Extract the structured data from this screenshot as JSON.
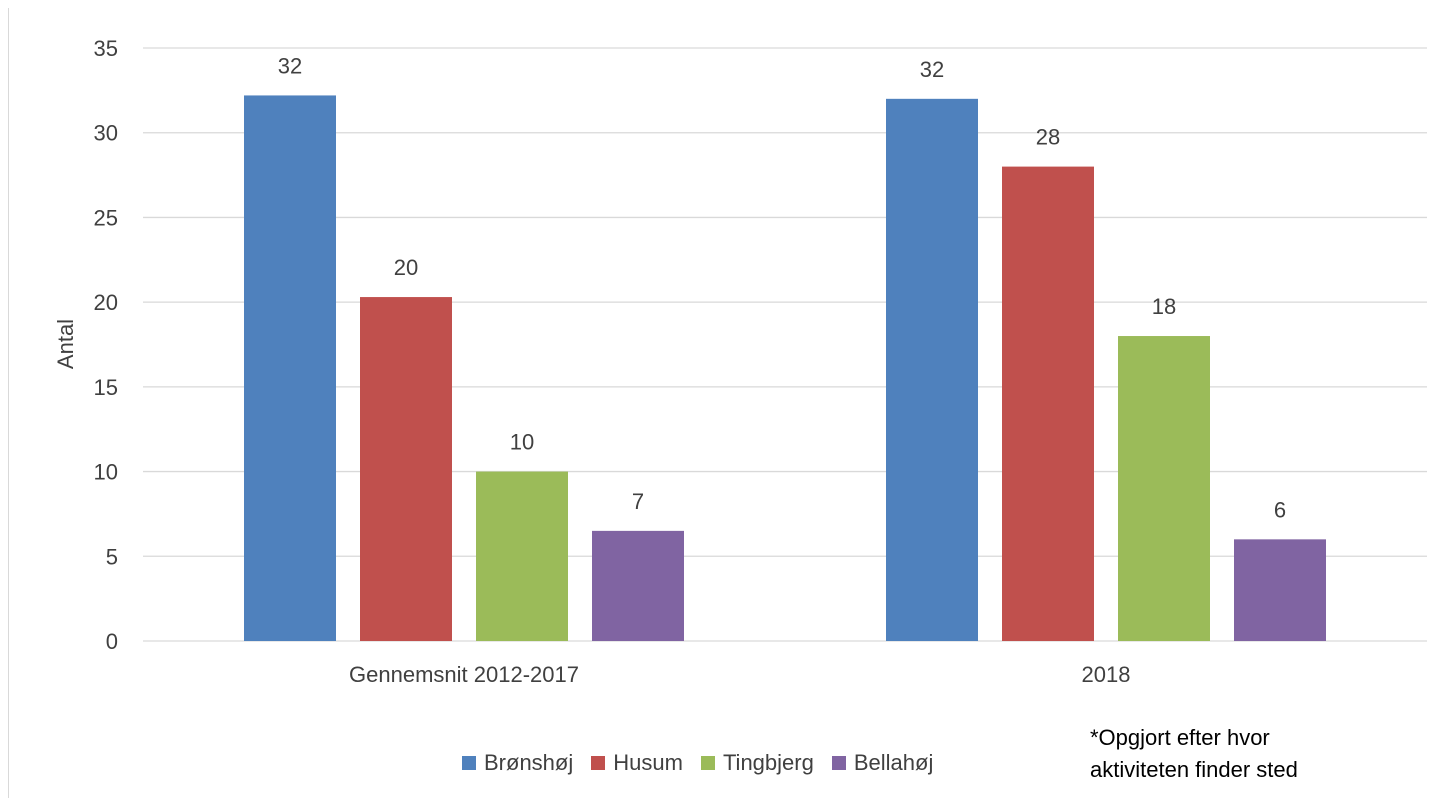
{
  "chart_data": {
    "type": "bar",
    "categories": [
      "Gennemsnit 2012-2017",
      "2018"
    ],
    "series": [
      {
        "name": "Brønshøj",
        "values": [
          32.2,
          32
        ],
        "labels": [
          "32",
          "32"
        ],
        "color": "#4f81bd"
      },
      {
        "name": "Husum",
        "values": [
          20.3,
          28
        ],
        "labels": [
          "20",
          "28"
        ],
        "color": "#c0504d"
      },
      {
        "name": "Tingbjerg",
        "values": [
          10,
          18
        ],
        "labels": [
          "10",
          "18"
        ],
        "color": "#9bbb59"
      },
      {
        "name": "Bellahøj",
        "values": [
          6.5,
          6
        ],
        "labels": [
          "7",
          "6"
        ],
        "color": "#8064a2"
      }
    ],
    "title": "",
    "xlabel": "",
    "ylabel": "Antal",
    "ylim": [
      0,
      35
    ],
    "yticks": [
      0,
      5,
      10,
      15,
      20,
      25,
      30,
      35
    ],
    "grid": true,
    "legend": "bottom"
  },
  "note": {
    "line1": "*Opgjort efter hvor",
    "line2": "aktiviteten finder sted"
  }
}
